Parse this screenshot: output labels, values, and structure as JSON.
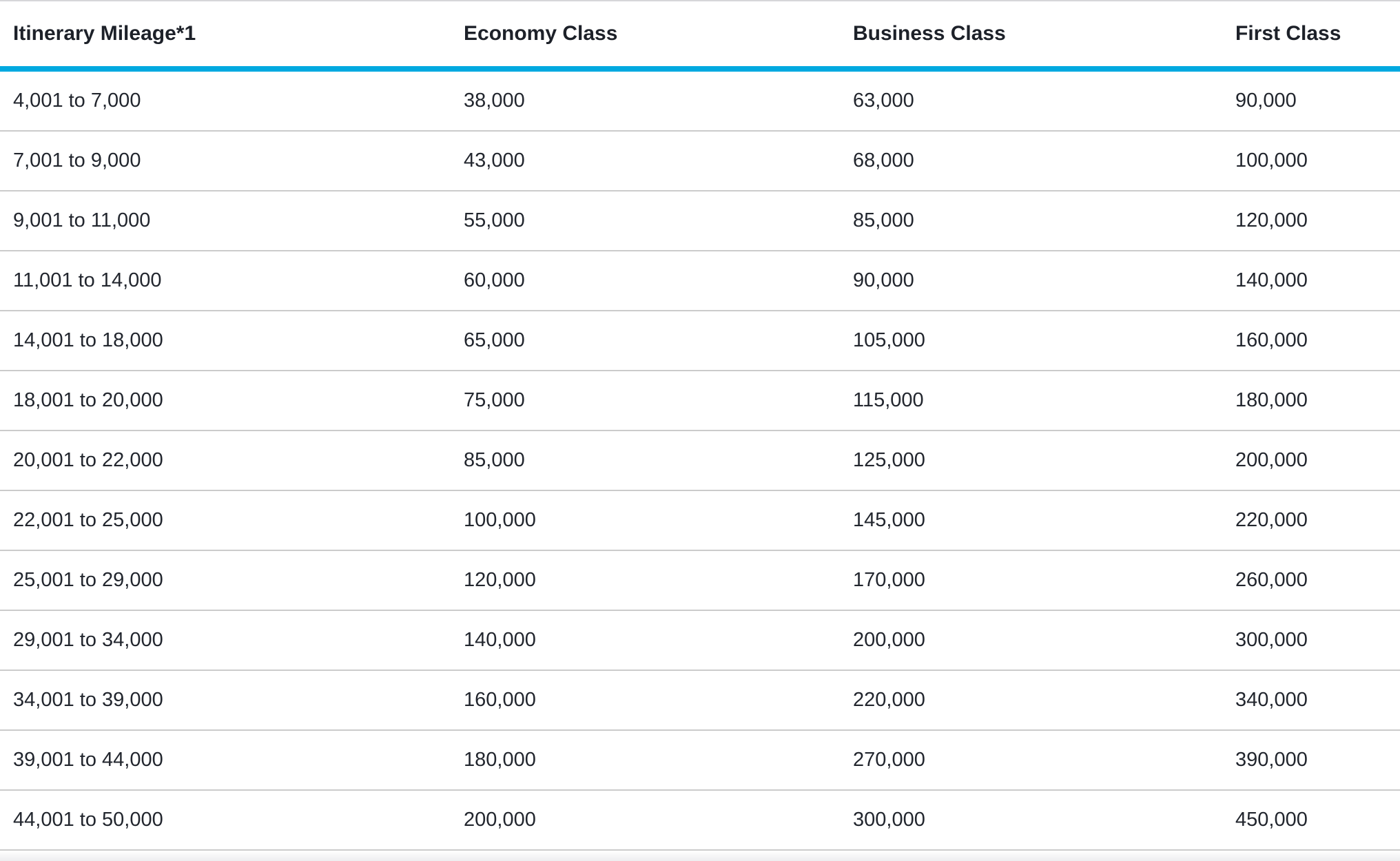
{
  "table": {
    "columns": [
      "Itinerary Mileage*1",
      "Economy Class",
      "Business Class",
      "First Class"
    ],
    "rows": [
      {
        "mileage": "4,001 to 7,000",
        "economy": "38,000",
        "business": "63,000",
        "first": "90,000"
      },
      {
        "mileage": "7,001 to 9,000",
        "economy": "43,000",
        "business": "68,000",
        "first": "100,000"
      },
      {
        "mileage": "9,001 to 11,000",
        "economy": "55,000",
        "business": "85,000",
        "first": "120,000"
      },
      {
        "mileage": "11,001 to 14,000",
        "economy": "60,000",
        "business": "90,000",
        "first": "140,000"
      },
      {
        "mileage": "14,001 to 18,000",
        "economy": "65,000",
        "business": "105,000",
        "first": "160,000"
      },
      {
        "mileage": "18,001 to 20,000",
        "economy": "75,000",
        "business": "115,000",
        "first": "180,000"
      },
      {
        "mileage": "20,001 to 22,000",
        "economy": "85,000",
        "business": "125,000",
        "first": "200,000"
      },
      {
        "mileage": "22,001 to 25,000",
        "economy": "100,000",
        "business": "145,000",
        "first": "220,000"
      },
      {
        "mileage": "25,001 to 29,000",
        "economy": "120,000",
        "business": "170,000",
        "first": "260,000"
      },
      {
        "mileage": "29,001 to 34,000",
        "economy": "140,000",
        "business": "200,000",
        "first": "300,000"
      },
      {
        "mileage": "34,001 to 39,000",
        "economy": "160,000",
        "business": "220,000",
        "first": "340,000"
      },
      {
        "mileage": "39,001 to 44,000",
        "economy": "180,000",
        "business": "270,000",
        "first": "390,000"
      },
      {
        "mileage": "44,001 to 50,000",
        "economy": "200,000",
        "business": "300,000",
        "first": "450,000"
      }
    ]
  },
  "colors": {
    "accent_blue": "#00a9e0",
    "row_separator": "#cbcbcb",
    "top_border": "#d6d6d9",
    "text": "#22262e"
  }
}
